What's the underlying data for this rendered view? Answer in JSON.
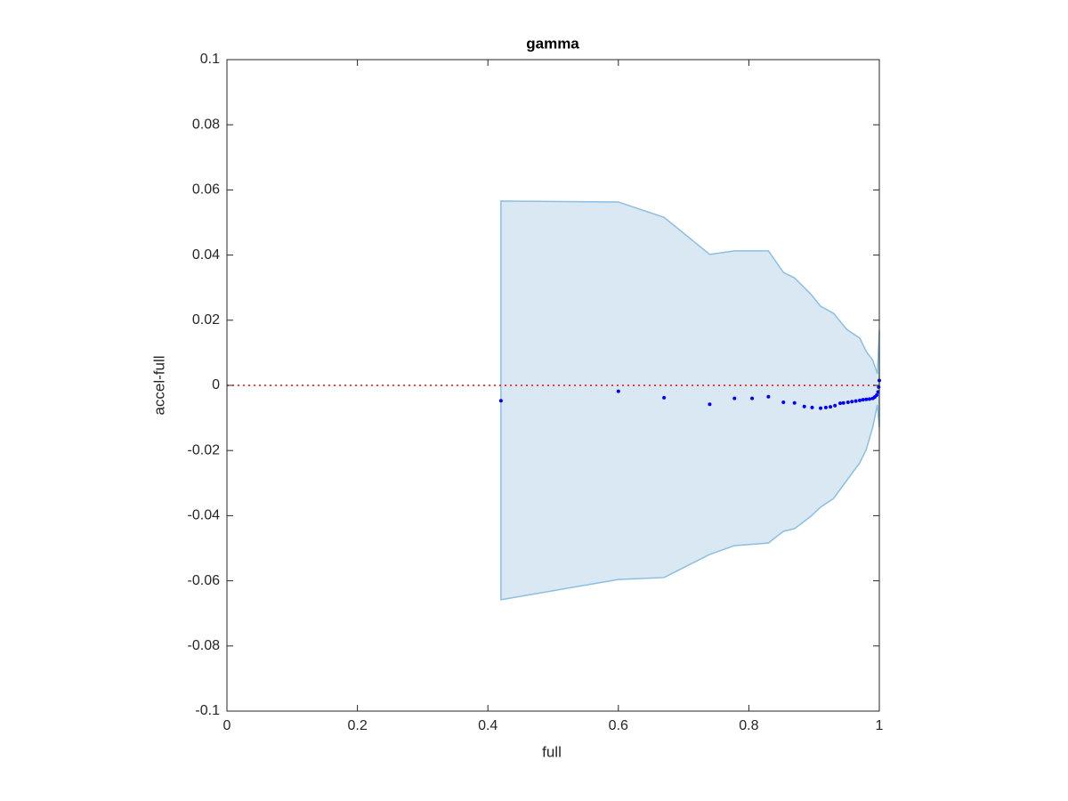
{
  "chart_data": {
    "type": "scatter",
    "title": "gamma",
    "x_label": "full",
    "y_label": "accel-full",
    "xlim": [
      0,
      1
    ],
    "ylim": [
      -0.1,
      0.1
    ],
    "xticks": [
      0,
      0.2,
      0.4,
      0.6,
      0.8,
      1
    ],
    "yticks": [
      -0.1,
      -0.08,
      -0.06,
      -0.04,
      -0.02,
      0,
      0.02,
      0.04,
      0.06,
      0.08,
      0.1
    ],
    "band": {
      "color": "#dae8f4",
      "edge_color": "#8bbfe0",
      "x": [
        0.42,
        0.6,
        0.67,
        0.74,
        0.778,
        0.83,
        0.853,
        0.87,
        0.895,
        0.91,
        0.93,
        0.95,
        0.97,
        0.98,
        0.99,
        0.997,
        1
      ],
      "upper": [
        0.0566,
        0.0563,
        0.0516,
        0.0402,
        0.0413,
        0.0413,
        0.0347,
        0.033,
        0.028,
        0.0243,
        0.0221,
        0.0172,
        0.0145,
        0.0104,
        0.0077,
        0.0036,
        0.017
      ],
      "lower": [
        -0.0658,
        -0.0596,
        -0.059,
        -0.0519,
        -0.0492,
        -0.0484,
        -0.0448,
        -0.044,
        -0.0402,
        -0.0374,
        -0.0347,
        -0.0292,
        -0.0238,
        -0.0197,
        -0.0128,
        -0.006,
        -0.013
      ]
    },
    "reference_line": {
      "y": 0,
      "color": "#ff0000"
    },
    "series": [
      {
        "color": "#0000ff",
        "x": [
          0.42,
          0.6,
          0.67,
          0.74,
          0.778,
          0.805,
          0.83,
          0.853,
          0.87,
          0.885,
          0.897,
          0.91,
          0.918,
          0.925,
          0.932,
          0.94,
          0.945,
          0.952,
          0.958,
          0.964,
          0.97,
          0.975,
          0.98,
          0.985,
          0.99,
          0.993,
          0.996,
          0.998,
          0.999,
          1
        ],
        "values": [
          -0.0047,
          -0.0018,
          -0.0038,
          -0.0058,
          -0.004,
          -0.004,
          -0.0035,
          -0.0052,
          -0.0054,
          -0.0065,
          -0.0068,
          -0.007,
          -0.0068,
          -0.0066,
          -0.0062,
          -0.0055,
          -0.0054,
          -0.0052,
          -0.005,
          -0.0048,
          -0.0046,
          -0.0044,
          -0.0043,
          -0.0042,
          -0.004,
          -0.0036,
          -0.003,
          -0.002,
          -0.0005,
          0.0015
        ]
      }
    ]
  }
}
